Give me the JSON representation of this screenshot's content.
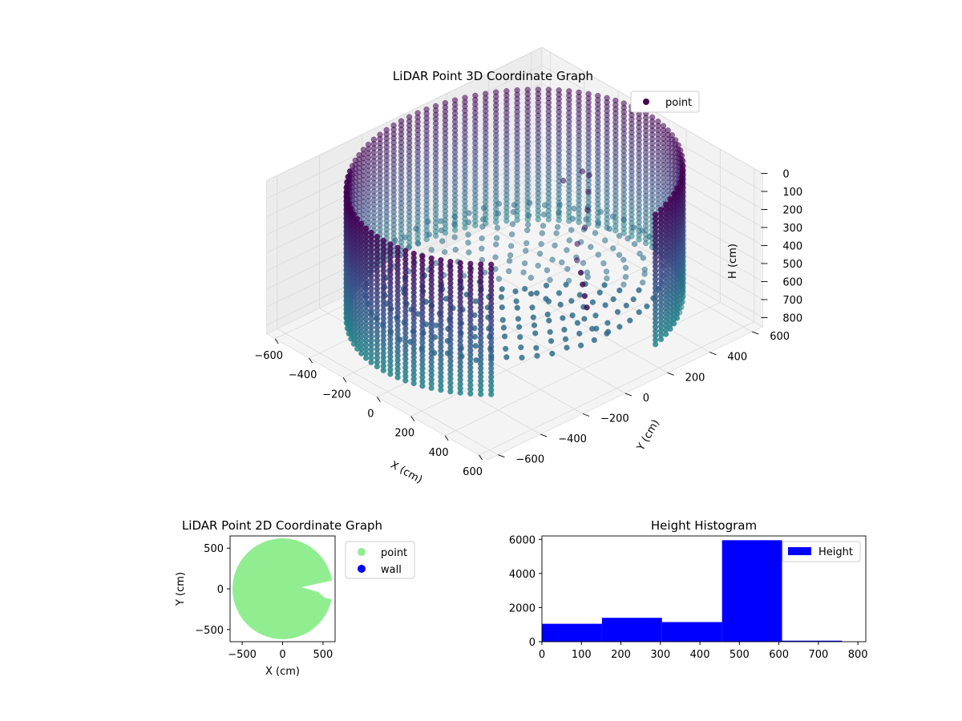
{
  "chart_data": [
    {
      "type": "scatter",
      "projection": "3d",
      "title": "LiDAR Point 3D Coordinate Graph",
      "xlabel": "X (cm)",
      "ylabel": "Y (cm)",
      "zlabel": "H (cm)",
      "xlim": [
        -650,
        650
      ],
      "ylim": [
        -650,
        650
      ],
      "zlim": [
        850,
        0
      ],
      "xticks": [
        -600,
        -400,
        -200,
        0,
        200,
        400,
        600
      ],
      "yticks": [
        -600,
        -400,
        -200,
        0,
        200,
        400,
        600
      ],
      "zticks": [
        0,
        100,
        200,
        300,
        400,
        500,
        600,
        700,
        800
      ],
      "zaxis_inverted": true,
      "grid": true,
      "colormap": "viridis (dark purple to teal by height)",
      "legend": {
        "placement": "top-right",
        "entries": [
          {
            "label": "point",
            "color": "#440154"
          }
        ]
      },
      "series": [
        {
          "name": "point",
          "description_of_shape": "cylindrical wall of radius ~620 cm, heights 0 to ~700 cm, open gap near positive X axis",
          "wall_radius": 620,
          "height_range": [
            0,
            720
          ],
          "gap_angle_deg": [
            -45,
            15
          ],
          "interior_structure_points": [
            [
              40,
              320,
              150
            ],
            [
              60,
              300,
              220
            ],
            [
              80,
              280,
              300
            ],
            [
              90,
              260,
              380
            ],
            [
              120,
              200,
              420
            ],
            [
              180,
              150,
              450
            ],
            [
              240,
              120,
              470
            ],
            [
              300,
              80,
              480
            ],
            [
              350,
              50,
              500
            ],
            [
              400,
              20,
              520
            ],
            [
              -150,
              350,
              300
            ],
            [
              -100,
              400,
              250
            ]
          ]
        }
      ]
    },
    {
      "type": "scatter",
      "title": "LiDAR Point 2D Coordinate Graph",
      "xlabel": "X (cm)",
      "ylabel": "Y (cm)",
      "xlim": [
        -650,
        650
      ],
      "ylim": [
        -650,
        650
      ],
      "xticks": [
        -500,
        0,
        500
      ],
      "yticks": [
        -500,
        0,
        500
      ],
      "legend": {
        "placement": "outside-right",
        "entries": [
          {
            "label": "point",
            "color": "#90ee90"
          },
          {
            "label": "wall",
            "color": "#0000ff"
          }
        ]
      },
      "series": [
        {
          "name": "point",
          "color": "#90ee90",
          "shape": "filled disc radius ~620 cm with notch near positive X"
        },
        {
          "name": "wall",
          "color": "#0000ff",
          "points": []
        }
      ]
    },
    {
      "type": "bar",
      "title": "Height Histogram",
      "xlabel": "",
      "ylabel": "",
      "xlim": [
        0,
        820
      ],
      "ylim": [
        0,
        6200
      ],
      "xticks": [
        0,
        100,
        200,
        300,
        400,
        500,
        600,
        700,
        800
      ],
      "yticks": [
        0,
        2000,
        4000,
        6000
      ],
      "color": "#0000ff",
      "legend": {
        "placement": "top-right",
        "entries": [
          {
            "label": "Height",
            "color": "#0000ff"
          }
        ]
      },
      "bins": [
        {
          "start": 0,
          "end": 152,
          "count": 1050
        },
        {
          "start": 152,
          "end": 304,
          "count": 1400
        },
        {
          "start": 304,
          "end": 456,
          "count": 1150
        },
        {
          "start": 456,
          "end": 608,
          "count": 5950
        },
        {
          "start": 608,
          "end": 760,
          "count": 60
        }
      ]
    }
  ]
}
